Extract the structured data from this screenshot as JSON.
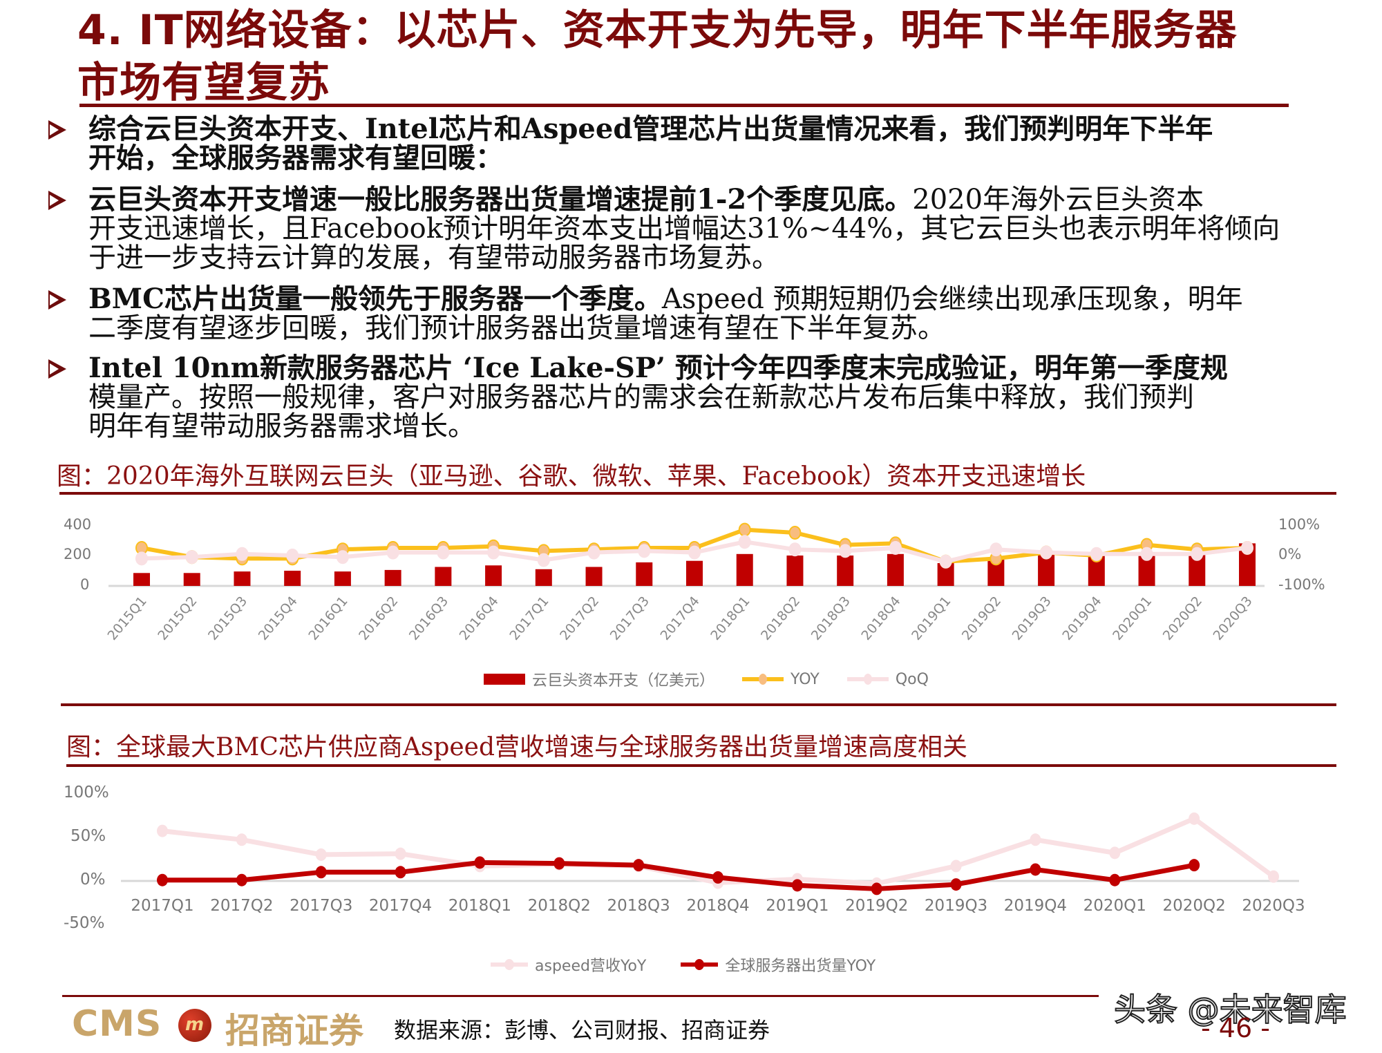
{
  "header": {
    "title_line1": "4. IT网络设备：以芯片、资本开支为先导，明年下半年服务器",
    "title_line2": "市场有望复苏"
  },
  "bullets": [
    {
      "lead": "",
      "lines": [
        "综合云巨头资本开支、Intel芯片和Aspeed管理芯片出货量情况来看，我们预判明年下半年",
        "开始，全球服务器需求有望回暖："
      ]
    },
    {
      "lead": "云巨头资本开支增速一般比服务器出货量增速提前1-2个季度见底。",
      "rest": "2020年海外云巨头资本",
      "lines": [
        "开支迅速增长，且Facebook预计明年资本支出增幅达31%~44%，其它云巨头也表示明年将倾向",
        "于进一步支持云计算的发展，有望带动服务器市场复苏。"
      ]
    },
    {
      "lead": "BMC芯片出货量一般领先于服务器一个季度。",
      "rest": "Aspeed 预期短期仍会继续出现承压现象，明年",
      "lines": [
        "二季度有望逐步回暖，我们预计服务器出货量增速有望在下半年复苏。"
      ]
    },
    {
      "lead": "Intel 10nm新款服务器芯片 ‘Ice Lake-SP’ 预计今年四季度末完成验证，明年第一季度规",
      "rest": "",
      "lines": [
        "模量产。按照一般规律，客户对服务器芯片的需求会在新款芯片发布后集中释放，我们预判",
        "明年有望带动服务器需求增长。"
      ],
      "lead2": "模量产。"
    }
  ],
  "figure1": {
    "caption": "图：2020年海外互联网云巨头（亚马逊、谷歌、微软、苹果、Facebook）资本开支迅速增长",
    "left_ticks": [
      "400",
      "200",
      "0"
    ],
    "right_ticks": [
      "100%",
      "0%",
      "-100%"
    ],
    "legend": [
      "云巨头资本开支（亿美元）",
      "YOY",
      "QoQ"
    ]
  },
  "figure2": {
    "caption": "图：全球最大BMC芯片供应商Aspeed营收增速与全球服务器出货量增速高度相关",
    "y_ticks": [
      "100%",
      "50%",
      "0%",
      "-50%"
    ],
    "legend": [
      "aspeed营收YoY",
      "全球服务器出货量YOY"
    ]
  },
  "footer": {
    "logo_text": "CMS",
    "logo_cn": "招商证券",
    "source": "数据来源：彭博、公司财报、招商证券",
    "page": "- 46 -",
    "watermark": "头条 @未来智库"
  },
  "colors": {
    "brand": "#7b0a0a",
    "bar": "#c00000",
    "yoy": "#fbbf1c",
    "qoq": "#f9e0e3",
    "server": "#c00000",
    "aspeed": "#f9e0e3"
  },
  "chart_data": [
    {
      "type": "bar",
      "title": "2020年海外互联网云巨头（亚马逊、谷歌、微软、苹果、Facebook）资本开支迅速增长",
      "categories": [
        "2015Q1",
        "2015Q2",
        "2015Q3",
        "2015Q4",
        "2016Q1",
        "2016Q2",
        "2016Q3",
        "2016Q4",
        "2017Q1",
        "2017Q2",
        "2017Q3",
        "2017Q4",
        "2018Q1",
        "2018Q2",
        "2018Q3",
        "2018Q4",
        "2019Q1",
        "2019Q2",
        "2019Q3",
        "2019Q4",
        "2020Q1",
        "2020Q2",
        "2020Q3"
      ],
      "series": [
        {
          "name": "云巨头资本开支（亿美元）",
          "type": "bar",
          "axis": "left",
          "values": [
            85,
            85,
            95,
            100,
            95,
            105,
            125,
            135,
            110,
            125,
            155,
            165,
            210,
            200,
            200,
            210,
            150,
            185,
            210,
            200,
            215,
            210,
            280
          ]
        },
        {
          "name": "YOY",
          "type": "line",
          "axis": "right",
          "values": [
            25,
            -5,
            -10,
            -10,
            20,
            25,
            25,
            30,
            15,
            20,
            25,
            25,
            85,
            75,
            35,
            40,
            -20,
            -10,
            10,
            0,
            35,
            20,
            25
          ]
        },
        {
          "name": "QoQ",
          "type": "line",
          "axis": "right",
          "values": [
            -10,
            -5,
            5,
            0,
            -5,
            10,
            10,
            10,
            -15,
            10,
            15,
            10,
            45,
            20,
            15,
            25,
            -20,
            20,
            10,
            5,
            5,
            5,
            25
          ]
        }
      ],
      "ylim_left": [
        0,
        400
      ],
      "ylim_right": [
        -100,
        100
      ],
      "left_ticks": [
        0,
        200,
        400
      ],
      "right_ticks": [
        "-100%",
        "0%",
        "100%"
      ],
      "legend_position": "bottom",
      "grid": false
    },
    {
      "type": "line",
      "title": "全球最大BMC芯片供应商Aspeed营收增速与全球服务器出货量增速高度相关",
      "categories": [
        "2017Q1",
        "2017Q2",
        "2017Q3",
        "2017Q4",
        "2018Q1",
        "2018Q2",
        "2018Q3",
        "2018Q4",
        "2019Q1",
        "2019Q2",
        "2019Q3",
        "2019Q4",
        "2020Q1",
        "2020Q2",
        "2020Q3"
      ],
      "series": [
        {
          "name": "aspeed营收YoY",
          "values": [
            57,
            47,
            30,
            31,
            17,
            19,
            17,
            -2,
            2,
            -3,
            17,
            47,
            32,
            71,
            5
          ]
        },
        {
          "name": "全球服务器出货量YOY",
          "values": [
            1,
            1,
            10,
            10,
            21,
            20,
            18,
            4,
            -5,
            -9,
            -4,
            13,
            1,
            18,
            null
          ]
        }
      ],
      "ylim": [
        -50,
        100
      ],
      "y_ticks": [
        "-50%",
        "0%",
        "50%",
        "100%"
      ],
      "legend_position": "bottom",
      "grid": false
    }
  ]
}
